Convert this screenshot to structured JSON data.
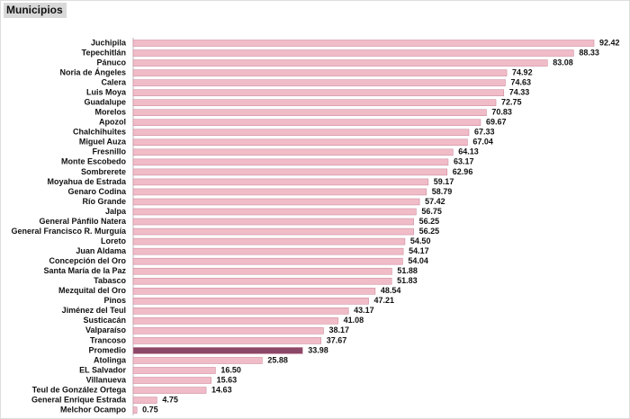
{
  "chart_data": {
    "type": "hbar",
    "title": "Municipios",
    "categories": [
      "Juchipila",
      "Tepechitlán",
      "Pánuco",
      "Noria de Ángeles",
      "Calera",
      "Luis Moya",
      "Guadalupe",
      "Morelos",
      "Apozol",
      "Chalchihuites",
      "Miguel Auza",
      "Fresnillo",
      "Monte Escobedo",
      "Sombrerete",
      "Moyahua de Estrada",
      "Genaro Codina",
      "Río Grande",
      "Jalpa",
      "General Pánfilo Natera",
      "General Francisco R. Murguía",
      "Loreto",
      "Juan Aldama",
      "Concepción del Oro",
      "Santa María de la Paz",
      "Tabasco",
      "Mezquital del Oro",
      "Pinos",
      "Jiménez del Teul",
      "Susticacán",
      "Valparaíso",
      "Trancoso",
      "Promedio",
      "Atolinga",
      "EL Salvador",
      "Villanueva",
      "Teul de González Ortega",
      "General Enrique Estrada",
      "Melchor Ocampo"
    ],
    "values": [
      92.42,
      88.33,
      83.08,
      74.92,
      74.63,
      74.33,
      72.75,
      70.83,
      69.67,
      67.33,
      67.04,
      64.13,
      63.17,
      62.96,
      59.17,
      58.79,
      57.42,
      56.75,
      56.25,
      56.25,
      54.5,
      54.17,
      54.04,
      51.88,
      51.83,
      48.54,
      47.21,
      43.17,
      41.08,
      38.17,
      37.67,
      33.98,
      25.88,
      16.5,
      15.63,
      14.63,
      4.75,
      0.75
    ],
    "value_labels": [
      "92.42",
      "88.33",
      "83.08",
      "74.92",
      "74.63",
      "74.33",
      "72.75",
      "70.83",
      "69.67",
      "67.33",
      "67.04",
      "64.13",
      "63.17",
      "62.96",
      "59.17",
      "58.79",
      "57.42",
      "56.75",
      "56.25",
      "56.25",
      "54.50",
      "54.17",
      "54.04",
      "51.88",
      "51.83",
      "48.54",
      "47.21",
      "43.17",
      "41.08",
      "38.17",
      "37.67",
      "33.98",
      "25.88",
      "16.50",
      "15.63",
      "14.63",
      "4.75",
      "0.75"
    ],
    "colors": [
      "#f0bcc8",
      "#f0bcc8",
      "#f0bcc8",
      "#f0bcc8",
      "#f0bcc8",
      "#f0bcc8",
      "#f0bcc8",
      "#f0bcc8",
      "#f0bcc8",
      "#f0bcc8",
      "#f0bcc8",
      "#f0bcc8",
      "#f0bcc8",
      "#f0bcc8",
      "#f0bcc8",
      "#f0bcc8",
      "#f0bcc8",
      "#f0bcc8",
      "#f0bcc8",
      "#f0bcc8",
      "#f0bcc8",
      "#f0bcc8",
      "#f0bcc8",
      "#f0bcc8",
      "#f0bcc8",
      "#f0bcc8",
      "#f0bcc8",
      "#f0bcc8",
      "#f0bcc8",
      "#f0bcc8",
      "#f0bcc8",
      "#8c4868",
      "#f0bcc8",
      "#f0bcc8",
      "#f0bcc8",
      "#f0bcc8",
      "#f0bcc8",
      "#f0bcc8"
    ]
  }
}
